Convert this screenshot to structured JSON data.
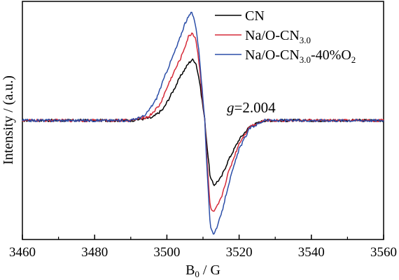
{
  "chart_data": {
    "type": "line",
    "xlabel": {
      "main": "B",
      "sub": "0",
      "rest": " / G"
    },
    "ylabel": "Intensity / (a.u.)",
    "xlim": [
      3460,
      3560
    ],
    "ylim": [
      -1.25,
      1.25
    ],
    "x_ticks": [
      3460,
      3480,
      3500,
      3520,
      3540,
      3560
    ],
    "y_ticks_labeled": false,
    "grid": false,
    "legend_position": "top-right",
    "annotation": {
      "italic": "g",
      "rest": "=2.004"
    },
    "series": [
      {
        "name": "CN",
        "legend": {
          "main": "CN",
          "sub": "",
          "rest": ""
        },
        "color": "#000000",
        "x": [
          3460,
          3490,
          3496,
          3499,
          3502,
          3504,
          3506,
          3507,
          3508,
          3509,
          3510,
          3510.5,
          3511,
          3512,
          3513,
          3515,
          3517,
          3520,
          3523,
          3527,
          3535,
          3560
        ],
        "y": [
          0.0,
          0.0,
          0.03,
          0.12,
          0.33,
          0.48,
          0.6,
          0.64,
          0.61,
          0.42,
          0.14,
          0.0,
          -0.22,
          -0.6,
          -0.68,
          -0.6,
          -0.42,
          -0.2,
          -0.06,
          0.0,
          0.0,
          0.0
        ]
      },
      {
        "name": "Na/O-CN3.0",
        "legend": {
          "main": "Na/O-CN",
          "sub": "3.0",
          "rest": ""
        },
        "color": "#d62a38",
        "x": [
          3460,
          3490,
          3495,
          3498,
          3501,
          3504,
          3506,
          3507,
          3508,
          3509,
          3510,
          3510.5,
          3511,
          3512,
          3513,
          3515,
          3517,
          3520,
          3523,
          3527,
          3535,
          3560
        ],
        "y": [
          0.0,
          0.0,
          0.04,
          0.16,
          0.43,
          0.67,
          0.88,
          0.92,
          0.86,
          0.58,
          0.18,
          0.0,
          -0.35,
          -0.92,
          -0.97,
          -0.82,
          -0.55,
          -0.24,
          -0.06,
          0.0,
          0.0,
          0.0
        ]
      },
      {
        "name": "Na/O-CN3.0-40%O2",
        "legend": {
          "main": "Na/O-CN",
          "sub": "3.0",
          "rest": "-40%O",
          "sub2": "2"
        },
        "color": "#2b4ea8",
        "x": [
          3460,
          3490,
          3494,
          3497,
          3500,
          3503,
          3505,
          3506.5,
          3507,
          3508,
          3509,
          3510,
          3510.5,
          3511,
          3512,
          3513,
          3515,
          3517,
          3520,
          3523,
          3527,
          3535,
          3560
        ],
        "y": [
          0.0,
          0.0,
          0.05,
          0.22,
          0.52,
          0.8,
          1.02,
          1.12,
          1.13,
          1.0,
          0.68,
          0.22,
          0.0,
          -0.45,
          -1.1,
          -1.2,
          -1.0,
          -0.68,
          -0.3,
          -0.08,
          0.0,
          0.0,
          0.0
        ]
      }
    ]
  }
}
